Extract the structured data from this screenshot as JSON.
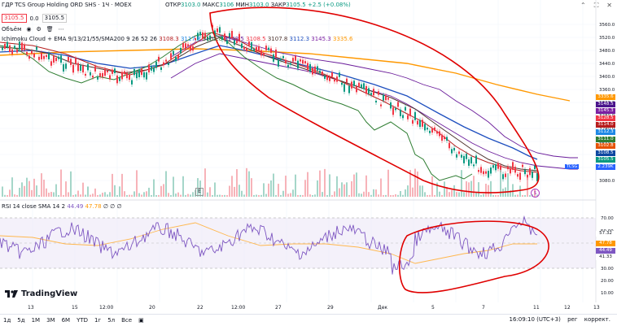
{
  "header": {
    "title": "ГДР TCS Group Holding ORD SHS · 1Ч · MOEX",
    "ohlc": {
      "open_label": "ОТКР",
      "open": "3103.0",
      "high_label": "МАКС",
      "high": "3106",
      "low_label": "МИН",
      "low": "3103.0",
      "close_label": "ЗАКР",
      "close": "3105.5",
      "change": "+2.5 (+0.08%)"
    },
    "price_sell": "3105.5",
    "spread": "0.0",
    "price_buy": "3105.5"
  },
  "indicators": {
    "volume_label": "Объём",
    "ichimoku_label": "Ichimoku Cloud + EMA 9/13/21/55/SMA200 9 26 52 26",
    "ichimoku_values": [
      "3108.3",
      "3117.8",
      "3105.8",
      "3148.5",
      "3108.5",
      "3107.8",
      "3112.3",
      "3145.3",
      "3335.6"
    ],
    "rsi_label": "RSI 14 close SMA 14 2",
    "rsi_values": [
      "44.49",
      "47.78",
      "∅",
      "∅",
      "∅"
    ]
  },
  "price_axis": {
    "ticks": [
      "3560.0",
      "3520.0",
      "3480.0",
      "3440.0",
      "3400.0",
      "3360.0",
      "3320.0",
      "3280.0",
      "3240.0",
      "3200.0",
      "3160.0",
      "3120.0",
      "3080.0"
    ],
    "tags": [
      {
        "label": "3335.6",
        "color": "#ff9800"
      },
      {
        "label": "3148.5",
        "color": "#4a148c"
      },
      {
        "label": "3145.3",
        "color": "#7b1fa2"
      },
      {
        "label": "3128.5",
        "color": "#f23645"
      },
      {
        "label": "3114.0",
        "color": "#b71c1c"
      },
      {
        "label": "3112.3",
        "color": "#1e88e5"
      },
      {
        "label": "3111.0",
        "color": "#2e7d32"
      },
      {
        "label": "3102.8",
        "color": "#e65100"
      },
      {
        "label": "3108.5",
        "color": "#0d47a1"
      },
      {
        "label": "3105.5",
        "color": "#089981"
      },
      {
        "label": "2.239K",
        "color": "#2962ff"
      }
    ],
    "ticker_tag": "TCSG"
  },
  "rsi_axis": {
    "ticks": [
      "70.00",
      "50.00",
      "30.00",
      "20.00",
      "10.00"
    ],
    "tags": [
      {
        "label": "57.32",
        "color": "#ffffff"
      },
      {
        "label": "47.78",
        "color": "#ff9800"
      },
      {
        "label": "44.49",
        "color": "#7e57c2"
      },
      {
        "label": "41.33",
        "color": "#ffffff"
      }
    ]
  },
  "time_axis": {
    "ticks": [
      "13",
      "15",
      "12:00",
      "20",
      "22",
      "12:00",
      "27",
      "29",
      "Дек",
      "5",
      "7",
      "11",
      "12",
      "13"
    ]
  },
  "logo": "TradingView",
  "bottombar": {
    "ranges": [
      "1д",
      "5д",
      "1М",
      "3М",
      "6М",
      "YTD",
      "1г",
      "5л",
      "Все"
    ],
    "time": "16:09:10 (UTC+3)",
    "mode": "рег",
    "adjust": "коррект."
  },
  "colors": {
    "candle_up": "#089981",
    "candle_down": "#f23645",
    "ema_blue": "#2962ff",
    "sma200": "#ff9800",
    "kumo_purple": "#6a1b9a",
    "rsi_line": "#7e57c2",
    "annotation": "#e00000"
  }
}
